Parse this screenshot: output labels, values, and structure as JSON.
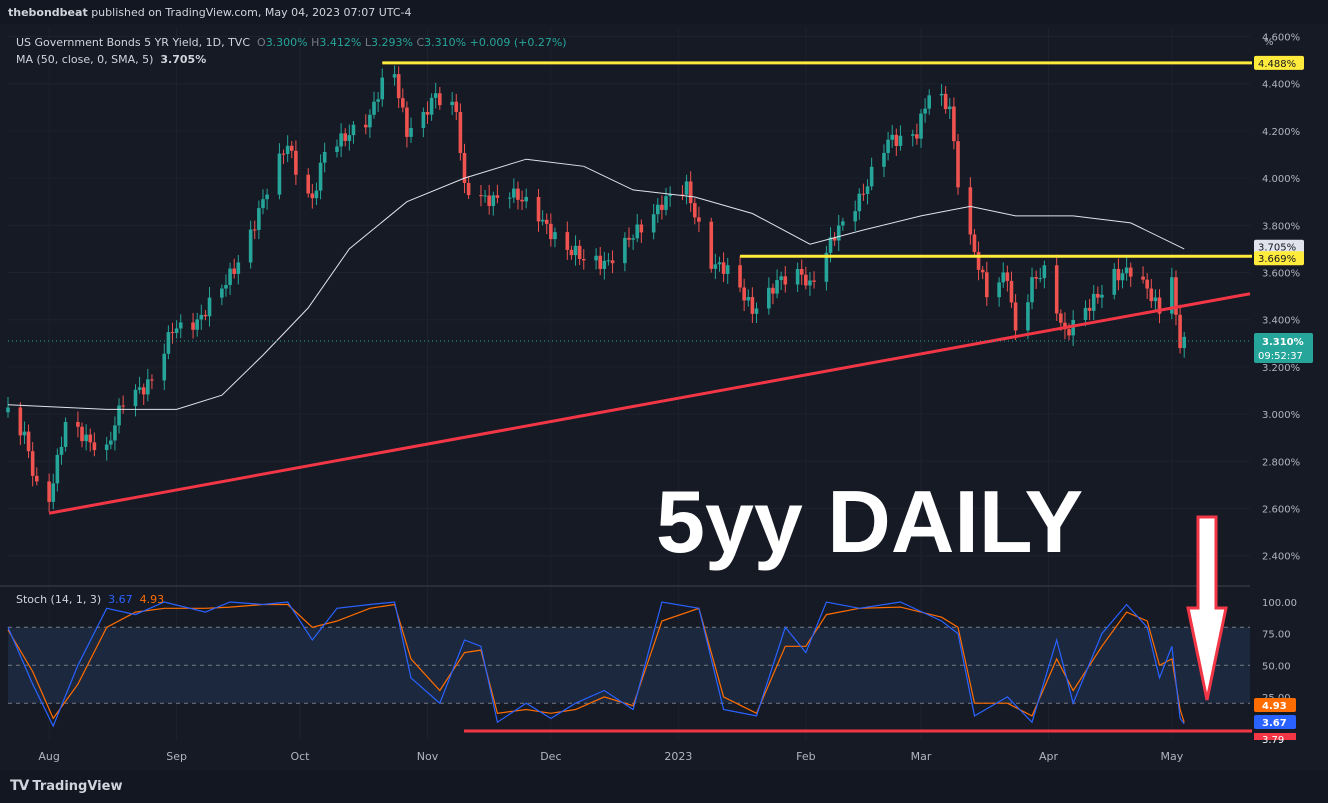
{
  "publisher": {
    "author": "thebondbeat",
    "text": "published on TradingView.com, May 04, 2023 07:07 UTC-4"
  },
  "legend": {
    "symbol": "US Government Bonds 5 YR Yield, 1D, TVC",
    "o_label": "O",
    "o_val": "3.300%",
    "h_label": "H",
    "h_val": "3.412%",
    "l_label": "L",
    "l_val": "3.293%",
    "c_label": "C",
    "c_val": "3.310%",
    "change": "+0.009 (+0.27%)",
    "ma_label": "MA (50, close, 0, SMA, 5)",
    "ma_val": "3.705%",
    "stoch_label": "Stoch (14, 1, 3)",
    "stoch_k": "3.67",
    "stoch_d": "4.93"
  },
  "annotation": {
    "text": "5yy DAILY"
  },
  "price_axis": {
    "unit": "%",
    "ticks": [
      "4.600%",
      "4.400%",
      "4.200%",
      "4.000%",
      "3.800%",
      "3.600%",
      "3.400%",
      "3.200%",
      "3.000%",
      "2.800%",
      "2.600%",
      "2.400%"
    ],
    "tag_high": "4.488%",
    "tag_ma": "3.705%",
    "tag_resist": "3.669%",
    "tag_price": "3.310%",
    "tag_timer": "09:52:37"
  },
  "stoch_axis": {
    "ticks": [
      "100.00",
      "75.00",
      "50.00",
      "25.00"
    ],
    "tag_d": "4.93",
    "tag_k": "3.67",
    "tag_low": "3.79"
  },
  "time_axis": [
    "Aug",
    "Sep",
    "Oct",
    "Nov",
    "Dec",
    "2023",
    "Feb",
    "Mar",
    "Apr",
    "May"
  ],
  "footer": {
    "brand": "TradingView"
  },
  "colors": {
    "bg": "#131722",
    "up": "#26a69a",
    "down": "#ef5350",
    "ma": "#e0e3eb",
    "yellow": "#ffeb3b",
    "trend": "#f23645",
    "stoch_k": "#2962ff",
    "stoch_d": "#ff6d00",
    "arrow": "#ffffff"
  },
  "chart_data": [
    {
      "type": "candlestick",
      "title": "US Government Bonds 5 YR Yield, 1D, TVC",
      "ylabel": "%",
      "ylim": [
        2.4,
        4.6
      ],
      "x_labels": [
        "Aug",
        "Sep",
        "Oct",
        "Nov",
        "Dec",
        "2023",
        "Feb",
        "Mar",
        "Apr",
        "May"
      ],
      "close_path": [
        [
          "2022-07-22",
          3.0
        ],
        [
          "2022-07-26",
          2.9
        ],
        [
          "2022-07-29",
          2.7
        ],
        [
          "2022-08-01",
          2.65
        ],
        [
          "2022-08-05",
          2.95
        ],
        [
          "2022-08-10",
          2.9
        ],
        [
          "2022-08-15",
          2.85
        ],
        [
          "2022-08-19",
          3.05
        ],
        [
          "2022-08-26",
          3.15
        ],
        [
          "2022-08-31",
          3.35
        ],
        [
          "2022-09-06",
          3.4
        ],
        [
          "2022-09-13",
          3.55
        ],
        [
          "2022-09-16",
          3.65
        ],
        [
          "2022-09-22",
          3.9
        ],
        [
          "2022-09-28",
          4.15
        ],
        [
          "2022-09-30",
          4.05
        ],
        [
          "2022-10-04",
          3.9
        ],
        [
          "2022-10-07",
          4.1
        ],
        [
          "2022-10-13",
          4.2
        ],
        [
          "2022-10-18",
          4.25
        ],
        [
          "2022-10-21",
          4.4
        ],
        [
          "2022-10-24",
          4.45
        ],
        [
          "2022-10-27",
          4.2
        ],
        [
          "2022-10-31",
          4.25
        ],
        [
          "2022-11-03",
          4.35
        ],
        [
          "2022-11-08",
          4.3
        ],
        [
          "2022-11-10",
          3.95
        ],
        [
          "2022-11-15",
          3.9
        ],
        [
          "2022-11-21",
          3.95
        ],
        [
          "2022-11-30",
          3.8
        ],
        [
          "2022-12-05",
          3.7
        ],
        [
          "2022-12-09",
          3.65
        ],
        [
          "2022-12-15",
          3.65
        ],
        [
          "2022-12-21",
          3.75
        ],
        [
          "2022-12-28",
          3.9
        ],
        [
          "2023-01-03",
          3.95
        ],
        [
          "2023-01-09",
          3.65
        ],
        [
          "2023-01-13",
          3.6
        ],
        [
          "2023-01-19",
          3.45
        ],
        [
          "2023-01-25",
          3.55
        ],
        [
          "2023-01-31",
          3.6
        ],
        [
          "2023-02-02",
          3.55
        ],
        [
          "2023-02-08",
          3.75
        ],
        [
          "2023-02-15",
          3.95
        ],
        [
          "2023-02-21",
          4.15
        ],
        [
          "2023-02-28",
          4.2
        ],
        [
          "2023-03-03",
          4.35
        ],
        [
          "2023-03-08",
          4.3
        ],
        [
          "2023-03-10",
          4.0
        ],
        [
          "2023-03-13",
          3.75
        ],
        [
          "2023-03-17",
          3.5
        ],
        [
          "2023-03-22",
          3.6
        ],
        [
          "2023-03-24",
          3.35
        ],
        [
          "2023-03-28",
          3.55
        ],
        [
          "2023-03-31",
          3.6
        ],
        [
          "2023-04-05",
          3.35
        ],
        [
          "2023-04-11",
          3.45
        ],
        [
          "2023-04-17",
          3.6
        ],
        [
          "2023-04-21",
          3.6
        ],
        [
          "2023-04-26",
          3.5
        ],
        [
          "2023-04-28",
          3.45
        ],
        [
          "2023-05-01",
          3.6
        ],
        [
          "2023-05-02",
          3.4
        ],
        [
          "2023-05-03",
          3.3
        ],
        [
          "2023-05-04",
          3.31
        ]
      ],
      "ma_path": [
        [
          "2022-07-22",
          3.04
        ],
        [
          "2022-08-15",
          3.02
        ],
        [
          "2022-09-01",
          3.02
        ],
        [
          "2022-09-12",
          3.08
        ],
        [
          "2022-09-22",
          3.25
        ],
        [
          "2022-10-03",
          3.45
        ],
        [
          "2022-10-13",
          3.7
        ],
        [
          "2022-10-27",
          3.9
        ],
        [
          "2022-11-10",
          4.0
        ],
        [
          "2022-11-25",
          4.08
        ],
        [
          "2022-12-09",
          4.05
        ],
        [
          "2022-12-21",
          3.95
        ],
        [
          "2023-01-05",
          3.92
        ],
        [
          "2023-01-19",
          3.85
        ],
        [
          "2023-02-02",
          3.72
        ],
        [
          "2023-02-15",
          3.78
        ],
        [
          "2023-03-01",
          3.84
        ],
        [
          "2023-03-13",
          3.88
        ],
        [
          "2023-03-24",
          3.84
        ],
        [
          "2023-04-07",
          3.84
        ],
        [
          "2023-04-21",
          3.81
        ],
        [
          "2023-05-04",
          3.7
        ]
      ],
      "lines": {
        "high_resistance": 4.488,
        "horizontal_resistance": 3.669,
        "trendline": [
          [
            "2022-08-01",
            2.58
          ],
          [
            "2023-05-20",
            3.51
          ]
        ]
      },
      "last": {
        "open": 3.3,
        "high": 3.412,
        "low": 3.293,
        "close": 3.31,
        "change": 0.009,
        "change_pct": 0.27
      },
      "ma": {
        "period": 50,
        "type": "SMA",
        "value": 3.705
      }
    },
    {
      "type": "line",
      "title": "Stoch (14, 1, 3)",
      "ylim": [
        0,
        100
      ],
      "levels": [
        20,
        50,
        80
      ],
      "series": [
        {
          "name": "%K",
          "color": "#2962ff",
          "last": 3.67
        },
        {
          "name": "%D",
          "color": "#ff6d00",
          "last": 4.93
        }
      ],
      "k_path": [
        [
          "2022-07-22",
          80
        ],
        [
          "2022-07-28",
          35
        ],
        [
          "2022-08-02",
          2
        ],
        [
          "2022-08-08",
          50
        ],
        [
          "2022-08-15",
          95
        ],
        [
          "2022-08-22",
          90
        ],
        [
          "2022-08-29",
          100
        ],
        [
          "2022-09-08",
          92
        ],
        [
          "2022-09-14",
          100
        ],
        [
          "2022-09-22",
          98
        ],
        [
          "2022-09-28",
          100
        ],
        [
          "2022-10-04",
          70
        ],
        [
          "2022-10-10",
          95
        ],
        [
          "2022-10-18",
          98
        ],
        [
          "2022-10-24",
          100
        ],
        [
          "2022-10-28",
          40
        ],
        [
          "2022-11-04",
          20
        ],
        [
          "2022-11-10",
          70
        ],
        [
          "2022-11-14",
          65
        ],
        [
          "2022-11-18",
          5
        ],
        [
          "2022-11-25",
          20
        ],
        [
          "2022-12-01",
          8
        ],
        [
          "2022-12-07",
          20
        ],
        [
          "2022-12-14",
          30
        ],
        [
          "2022-12-21",
          15
        ],
        [
          "2022-12-28",
          100
        ],
        [
          "2023-01-06",
          95
        ],
        [
          "2023-01-12",
          15
        ],
        [
          "2023-01-20",
          10
        ],
        [
          "2023-01-27",
          80
        ],
        [
          "2023-02-01",
          60
        ],
        [
          "2023-02-06",
          100
        ],
        [
          "2023-02-14",
          95
        ],
        [
          "2023-02-24",
          100
        ],
        [
          "2023-03-06",
          85
        ],
        [
          "2023-03-10",
          75
        ],
        [
          "2023-03-14",
          10
        ],
        [
          "2023-03-22",
          25
        ],
        [
          "2023-03-28",
          5
        ],
        [
          "2023-04-03",
          70
        ],
        [
          "2023-04-07",
          20
        ],
        [
          "2023-04-14",
          75
        ],
        [
          "2023-04-20",
          98
        ],
        [
          "2023-04-25",
          80
        ],
        [
          "2023-04-28",
          40
        ],
        [
          "2023-05-01",
          65
        ],
        [
          "2023-05-03",
          8
        ],
        [
          "2023-05-04",
          3.67
        ]
      ],
      "d_path": [
        [
          "2022-07-22",
          78
        ],
        [
          "2022-07-28",
          45
        ],
        [
          "2022-08-02",
          8
        ],
        [
          "2022-08-08",
          35
        ],
        [
          "2022-08-15",
          80
        ],
        [
          "2022-08-22",
          92
        ],
        [
          "2022-08-29",
          95
        ],
        [
          "2022-09-08",
          95
        ],
        [
          "2022-09-14",
          96
        ],
        [
          "2022-09-22",
          98
        ],
        [
          "2022-09-28",
          98
        ],
        [
          "2022-10-04",
          80
        ],
        [
          "2022-10-10",
          85
        ],
        [
          "2022-10-18",
          95
        ],
        [
          "2022-10-24",
          98
        ],
        [
          "2022-10-28",
          55
        ],
        [
          "2022-11-04",
          30
        ],
        [
          "2022-11-10",
          60
        ],
        [
          "2022-11-14",
          62
        ],
        [
          "2022-11-18",
          12
        ],
        [
          "2022-11-25",
          15
        ],
        [
          "2022-12-01",
          12
        ],
        [
          "2022-12-07",
          15
        ],
        [
          "2022-12-14",
          25
        ],
        [
          "2022-12-21",
          18
        ],
        [
          "2022-12-28",
          85
        ],
        [
          "2023-01-06",
          95
        ],
        [
          "2023-01-12",
          25
        ],
        [
          "2023-01-20",
          12
        ],
        [
          "2023-01-27",
          65
        ],
        [
          "2023-02-01",
          65
        ],
        [
          "2023-02-06",
          90
        ],
        [
          "2023-02-14",
          95
        ],
        [
          "2023-02-24",
          96
        ],
        [
          "2023-03-06",
          88
        ],
        [
          "2023-03-10",
          80
        ],
        [
          "2023-03-14",
          20
        ],
        [
          "2023-03-22",
          20
        ],
        [
          "2023-03-28",
          10
        ],
        [
          "2023-04-03",
          55
        ],
        [
          "2023-04-07",
          30
        ],
        [
          "2023-04-14",
          65
        ],
        [
          "2023-04-20",
          92
        ],
        [
          "2023-04-25",
          85
        ],
        [
          "2023-04-28",
          50
        ],
        [
          "2023-05-01",
          55
        ],
        [
          "2023-05-03",
          15
        ],
        [
          "2023-05-04",
          4.93
        ]
      ]
    }
  ]
}
